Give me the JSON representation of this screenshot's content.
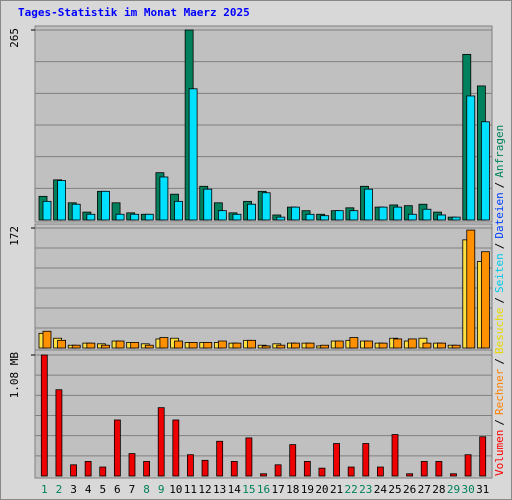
{
  "chart_data": [
    {
      "type": "bar",
      "title": "Tages-Statistik im Monat Maerz 2025",
      "ylim": [
        0,
        265
      ],
      "yticks": [
        265
      ],
      "legend_separator": "/",
      "legend": [
        {
          "name": "Seiten",
          "color": "#00c8e8"
        },
        {
          "name": "Dateien",
          "color": "#0040ff"
        },
        {
          "name": "Anfragen",
          "color": "#00805c"
        }
      ],
      "series": [
        {
          "color": "#00805c",
          "values": [
            33,
            56,
            24,
            11,
            40,
            24,
            10,
            8,
            66,
            36,
            265,
            47,
            24,
            10,
            26,
            40,
            7,
            18,
            13,
            8,
            13,
            17,
            47,
            18,
            21,
            20,
            22,
            11,
            4,
            231,
            187
          ]
        },
        {
          "color": "#00e0ff",
          "values": [
            26,
            55,
            22,
            8,
            40,
            8,
            8,
            8,
            60,
            26,
            183,
            43,
            13,
            8,
            22,
            38,
            4,
            18,
            8,
            6,
            13,
            13,
            43,
            18,
            18,
            8,
            15,
            7,
            4,
            173,
            137
          ]
        }
      ]
    },
    {
      "type": "bar",
      "ylim": [
        0,
        172
      ],
      "yticks": [
        172
      ],
      "legend": [
        {
          "name": "Rechner",
          "color": "#ff8000"
        },
        {
          "name": "Besuche",
          "color": "#e8d800"
        }
      ],
      "series": [
        {
          "color": "#ffe040",
          "values": [
            21,
            14,
            4,
            7,
            6,
            10,
            8,
            6,
            13,
            14,
            8,
            8,
            8,
            7,
            11,
            4,
            6,
            7,
            7,
            3,
            10,
            11,
            10,
            7,
            14,
            10,
            14,
            7,
            4,
            155,
            124
          ]
        },
        {
          "color": "#ff9000",
          "values": [
            24,
            11,
            4,
            7,
            4,
            10,
            8,
            4,
            15,
            10,
            8,
            8,
            10,
            7,
            11,
            3,
            4,
            7,
            7,
            4,
            10,
            15,
            10,
            7,
            13,
            13,
            7,
            7,
            4,
            169,
            138
          ]
        }
      ]
    },
    {
      "type": "bar",
      "ylim": [
        0,
        1.08
      ],
      "yticks": [
        {
          "value": 1.08,
          "label": "1.08 MB"
        }
      ],
      "legend": [
        {
          "name": "Volumen",
          "color": "#ff0000"
        }
      ],
      "categories": [
        "1",
        "2",
        "3",
        "4",
        "5",
        "6",
        "7",
        "8",
        "9",
        "10",
        "11",
        "12",
        "13",
        "14",
        "15",
        "16",
        "17",
        "18",
        "19",
        "20",
        "21",
        "22",
        "23",
        "24",
        "25",
        "26",
        "27",
        "28",
        "29",
        "30",
        "31"
      ],
      "category_colors": [
        "#00805c",
        "#00805c",
        "#000",
        "#000",
        "#000",
        "#000",
        "#000",
        "#00805c",
        "#00805c",
        "#000",
        "#000",
        "#000",
        "#000",
        "#000",
        "#00805c",
        "#00805c",
        "#000",
        "#000",
        "#000",
        "#000",
        "#000",
        "#00805c",
        "#00805c",
        "#000",
        "#000",
        "#000",
        "#000",
        "#000",
        "#00805c",
        "#00805c",
        "#000"
      ],
      "series": [
        {
          "color": "#ee0000",
          "values": [
            1.08,
            0.77,
            0.1,
            0.13,
            0.08,
            0.5,
            0.2,
            0.13,
            0.61,
            0.5,
            0.19,
            0.14,
            0.31,
            0.13,
            0.34,
            0.02,
            0.1,
            0.28,
            0.13,
            0.07,
            0.29,
            0.08,
            0.29,
            0.08,
            0.37,
            0.02,
            0.13,
            0.13,
            0.02,
            0.19,
            0.35
          ]
        }
      ]
    }
  ]
}
